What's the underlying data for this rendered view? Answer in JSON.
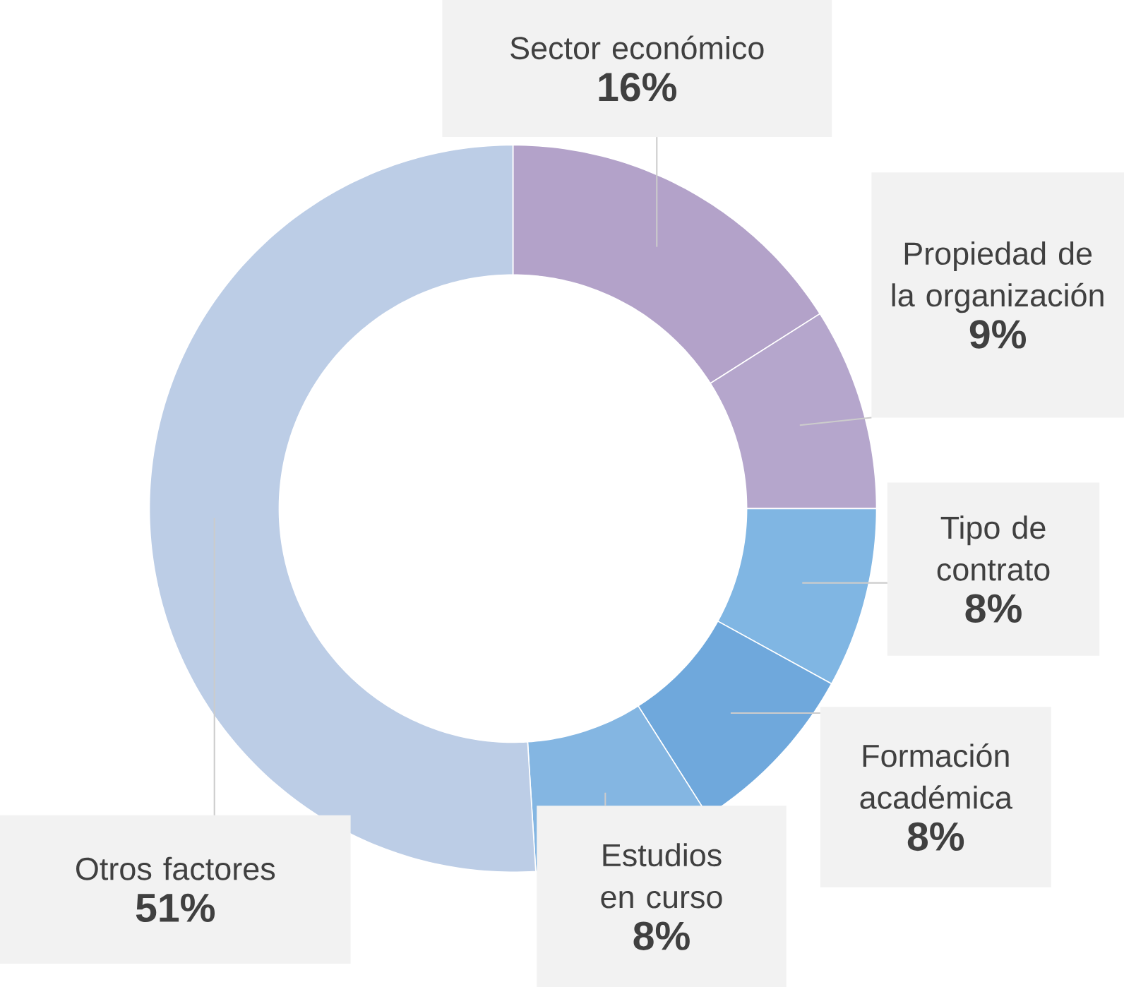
{
  "chart_data": {
    "type": "donut",
    "categories": [
      "Sector económico",
      "Propiedad de la organización",
      "Tipo de contrato",
      "Formación académica",
      "Estudios en curso",
      "Otros factores"
    ],
    "values": [
      16,
      9,
      8,
      8,
      8,
      51
    ],
    "value_labels": [
      "16%",
      "9%",
      "8%",
      "8%",
      "8%",
      "51%"
    ],
    "colors": [
      "#b3a2c9",
      "#b5a6cc",
      "#80b6e3",
      "#6fa8dc",
      "#84b6e2",
      "#bccde6"
    ]
  }
}
